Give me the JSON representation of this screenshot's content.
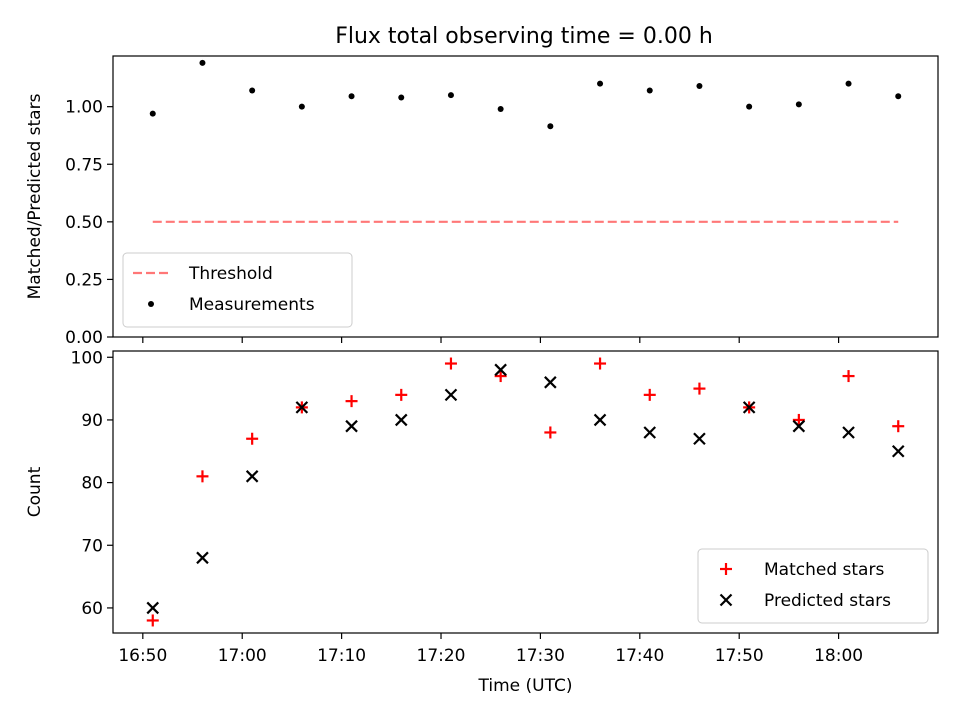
{
  "title": "Flux total observing time = 0.00 h",
  "chart_data": [
    {
      "type": "scatter",
      "panel": "top",
      "ylabel": "Matched/Predicted stars",
      "ylim": [
        0.0,
        1.22
      ],
      "yticks": [
        0.0,
        0.25,
        0.5,
        0.75,
        1.0
      ],
      "ytick_labels": [
        "0.00",
        "0.25",
        "0.50",
        "0.75",
        "1.00"
      ],
      "grid": false,
      "legend_position": "lower-left",
      "threshold": {
        "name": "Threshold",
        "value": 0.5,
        "x_start": "16:51",
        "x_end": "18:06",
        "color": "#ff7777",
        "style": "dashed"
      },
      "series": [
        {
          "name": "Measurements",
          "color": "#000000",
          "marker": "dot",
          "x": [
            "16:51",
            "16:56",
            "17:01",
            "17:06",
            "17:11",
            "17:16",
            "17:21",
            "17:26",
            "17:31",
            "17:36",
            "17:41",
            "17:46",
            "17:51",
            "17:56",
            "18:01",
            "18:06"
          ],
          "y": [
            0.97,
            1.19,
            1.07,
            1.0,
            1.045,
            1.04,
            1.05,
            0.99,
            0.915,
            1.1,
            1.07,
            1.09,
            1.0,
            1.01,
            1.1,
            1.045
          ]
        }
      ]
    },
    {
      "type": "scatter",
      "panel": "bottom",
      "xlabel": "Time (UTC)",
      "ylabel": "Count",
      "ylim": [
        56,
        101
      ],
      "yticks": [
        60,
        70,
        80,
        90,
        100
      ],
      "ytick_labels": [
        "60",
        "70",
        "80",
        "90",
        "100"
      ],
      "xlim": [
        "16:47",
        "18:10"
      ],
      "xticks": [
        "16:50",
        "17:00",
        "17:10",
        "17:20",
        "17:30",
        "17:40",
        "17:50",
        "18:00"
      ],
      "grid": false,
      "legend_position": "lower-right",
      "series": [
        {
          "name": "Matched stars",
          "color": "#ff0000",
          "marker": "plus",
          "x": [
            "16:51",
            "16:56",
            "17:01",
            "17:06",
            "17:11",
            "17:16",
            "17:21",
            "17:26",
            "17:31",
            "17:36",
            "17:41",
            "17:46",
            "17:51",
            "17:56",
            "18:01",
            "18:06"
          ],
          "y": [
            58,
            81,
            87,
            92,
            93,
            94,
            99,
            97,
            88,
            99,
            94,
            95,
            92,
            90,
            97,
            89
          ]
        },
        {
          "name": "Predicted stars",
          "color": "#000000",
          "marker": "x",
          "x": [
            "16:51",
            "16:56",
            "17:01",
            "17:06",
            "17:11",
            "17:16",
            "17:21",
            "17:26",
            "17:31",
            "17:36",
            "17:41",
            "17:46",
            "17:51",
            "17:56",
            "18:01",
            "18:06"
          ],
          "y": [
            60,
            68,
            81,
            92,
            89,
            90,
            94,
            98,
            96,
            90,
            88,
            87,
            92,
            89,
            88,
            85
          ]
        }
      ]
    }
  ]
}
